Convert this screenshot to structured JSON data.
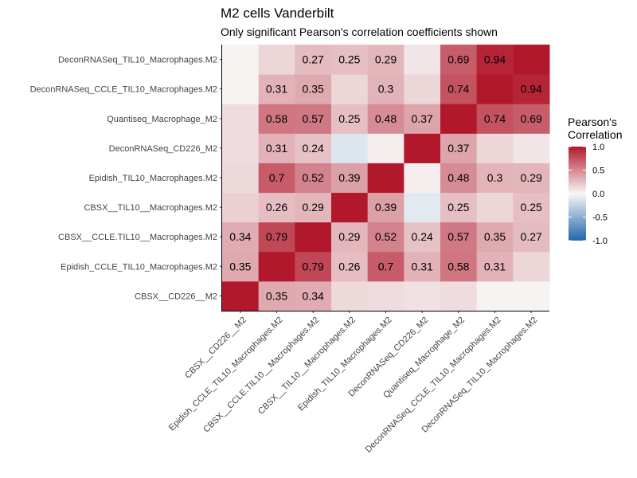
{
  "chart_data": {
    "type": "heatmap",
    "title": "M2 cells Vanderbilt",
    "subtitle": "Only significant Pearson's correlation coefficients shown",
    "legend_title": [
      "Pearson's",
      "Correlation"
    ],
    "legend_ticks": [
      "1.0",
      "0.5",
      "0.0",
      "-0.5",
      "-1.0"
    ],
    "legend_tick_values": [
      1.0,
      0.5,
      0.0,
      -0.5,
      -1.0
    ],
    "color_range": [
      -1,
      1
    ],
    "colors": {
      "low": "#2166ac",
      "mid": "#f7f7f7",
      "high": "#b2182b"
    },
    "x_categories": [
      "CBSX__CD226__M2",
      "Epidish_CCLE_TIL10_Macrophages.M2",
      "CBSX__CCLE.TIL10__Macrophages.M2",
      "CBSX__TIL10__Macrophages.M2",
      "Epidish_TIL10_Macrophages.M2",
      "DeconRNASeq_CD226_M2",
      "Quantiseq_Macrophage_M2",
      "DeconRNASeq_CCLE_TIL10_Macrophages.M2",
      "DeconRNASeq_TIL10_Macrophages.M2"
    ],
    "y_categories": [
      "CBSX__CD226__M2",
      "Epidish_CCLE_TIL10_Macrophages.M2",
      "CBSX__CCLE.TIL10__Macrophages.M2",
      "CBSX__TIL10__Macrophages.M2",
      "Epidish_TIL10_Macrophages.M2",
      "DeconRNASeq_CD226_M2",
      "Quantiseq_Macrophage_M2",
      "DeconRNASeq_CCLE_TIL10_Macrophages.M2",
      "DeconRNASeq_TIL10_Macrophages.M2"
    ],
    "values": [
      [
        1.0,
        0.35,
        0.34,
        0.14,
        0.12,
        0.1,
        0.12,
        0.02,
        0.02
      ],
      [
        0.35,
        1.0,
        0.79,
        0.26,
        0.7,
        0.31,
        0.58,
        0.31,
        0.15
      ],
      [
        0.34,
        0.79,
        1.0,
        0.29,
        0.52,
        0.24,
        0.57,
        0.35,
        0.27
      ],
      [
        0.18,
        0.26,
        0.29,
        1.0,
        0.39,
        -0.1,
        0.25,
        0.15,
        0.25
      ],
      [
        0.14,
        0.7,
        0.52,
        0.39,
        1.0,
        0.05,
        0.48,
        0.3,
        0.29
      ],
      [
        0.12,
        0.31,
        0.24,
        -0.12,
        0.05,
        1.0,
        0.37,
        0.15,
        0.08
      ],
      [
        0.12,
        0.58,
        0.57,
        0.25,
        0.48,
        0.37,
        1.0,
        0.74,
        0.69
      ],
      [
        0.02,
        0.31,
        0.35,
        0.15,
        0.3,
        0.15,
        0.74,
        1.0,
        0.94
      ],
      [
        0.02,
        0.15,
        0.27,
        0.25,
        0.29,
        0.08,
        0.69,
        0.94,
        1.0
      ]
    ],
    "labels": [
      [
        "",
        "0.35",
        "0.34",
        "",
        "",
        "",
        "",
        "",
        ""
      ],
      [
        "0.35",
        "",
        "0.79",
        "0.26",
        "0.7",
        "0.31",
        "0.58",
        "0.31",
        ""
      ],
      [
        "0.34",
        "0.79",
        "",
        "0.29",
        "0.52",
        "0.24",
        "0.57",
        "0.35",
        "0.27"
      ],
      [
        "",
        "0.26",
        "0.29",
        "",
        "0.39",
        "",
        "0.25",
        "",
        "0.25"
      ],
      [
        "",
        "0.7",
        "0.52",
        "0.39",
        "",
        "",
        "0.48",
        "0.3",
        "0.29"
      ],
      [
        "",
        "0.31",
        "0.24",
        "",
        "",
        "",
        "0.37",
        "",
        ""
      ],
      [
        "",
        "0.58",
        "0.57",
        "0.25",
        "0.48",
        "0.37",
        "",
        "0.74",
        "0.69"
      ],
      [
        "",
        "0.31",
        "0.35",
        "",
        "0.3",
        "",
        "0.74",
        "",
        "0.94"
      ],
      [
        "",
        "",
        "0.27",
        "0.25",
        "0.29",
        "",
        "0.69",
        "0.94",
        ""
      ]
    ]
  }
}
